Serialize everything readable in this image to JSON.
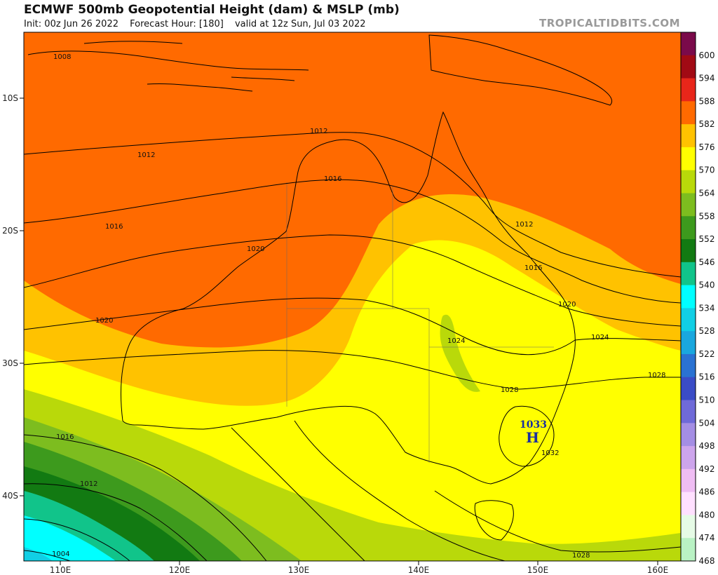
{
  "header": {
    "title": "ECMWF 500mb Geopotential Height (dam) & MSLP (mb)",
    "init": "Init: 00z Jun 26 2022",
    "forecast_hour": "Forecast Hour: [180]",
    "valid": "valid at 12z Sun, Jul 03 2022",
    "brand": "TROPICALTIDBITS.COM"
  },
  "axes": {
    "lon_labels": [
      "110E",
      "120E",
      "130E",
      "140E",
      "150E",
      "160E"
    ],
    "lat_labels": [
      "10S",
      "20S",
      "30S",
      "40S"
    ]
  },
  "colorbar": {
    "labels": [
      "600",
      "594",
      "588",
      "582",
      "576",
      "570",
      "564",
      "558",
      "552",
      "546",
      "540",
      "534",
      "528",
      "522",
      "516",
      "510",
      "504",
      "498",
      "492",
      "486",
      "480",
      "474",
      "468"
    ],
    "colors": [
      "#7a0a4a",
      "#a10a14",
      "#e8261a",
      "#ff6a00",
      "#ffc200",
      "#ffff00",
      "#b9d90a",
      "#7dbd1f",
      "#3d9a1d",
      "#127a12",
      "#11c48a",
      "#00ffff",
      "#11cfe5",
      "#1aa7de",
      "#2a72d2",
      "#3a4cc6",
      "#6f6ad8",
      "#a48ee4",
      "#cda5ec",
      "#efbdf3",
      "#ffe0ff",
      "#e6fbe6",
      "#b9f2c4"
    ]
  },
  "pressure_system": {
    "type": "H",
    "value": "1033"
  },
  "isobar_labels": [
    "1008",
    "1012",
    "1012",
    "1016",
    "1016",
    "1020",
    "1020",
    "1012",
    "1016",
    "1020",
    "1024",
    "1024",
    "1028",
    "1028",
    "1032",
    "1016",
    "1012",
    "1004",
    "1028"
  ],
  "colors": {
    "c588": "#ff6a00",
    "c582": "#ffc200",
    "c576": "#ffff00",
    "c570": "#b9d90a",
    "c564": "#7dbd1f",
    "c558": "#3d9a1d",
    "c552": "#127a12",
    "c546": "#11c48a",
    "c540": "#00ffff",
    "c534": "#11cfe5"
  }
}
